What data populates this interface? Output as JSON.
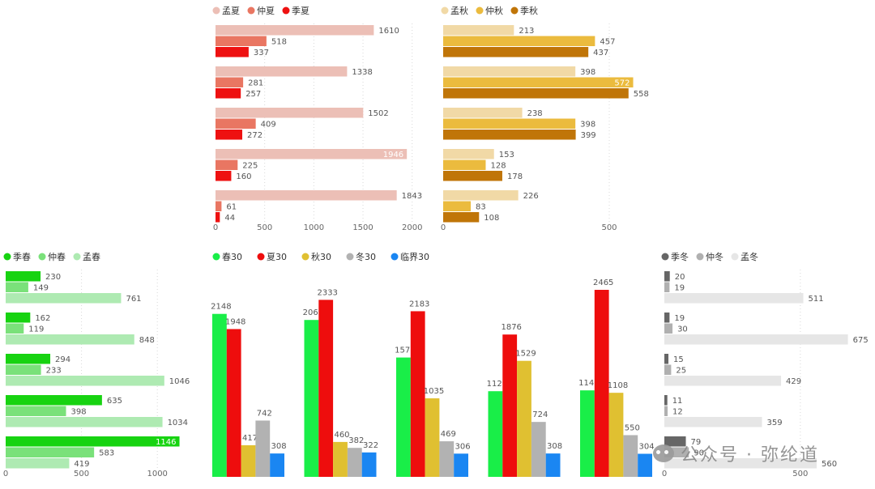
{
  "chart_data": [
    {
      "id": "summer",
      "type": "bar",
      "orientation": "horizontal",
      "title": "",
      "legend_position": "top-left",
      "series": [
        {
          "name": "孟夏",
          "color": "#ecbfb6",
          "values": [
            1610,
            1338,
            1502,
            1946,
            1843
          ]
        },
        {
          "name": "仲夏",
          "color": "#e97662",
          "values": [
            518,
            281,
            409,
            225,
            61
          ]
        },
        {
          "name": "季夏",
          "color": "#ee1111",
          "values": [
            337,
            257,
            272,
            160,
            44
          ]
        }
      ],
      "xlim": [
        0,
        2200
      ],
      "xticks": [
        0,
        500,
        1000,
        1500,
        2000
      ],
      "grid": true
    },
    {
      "id": "autumn",
      "type": "bar",
      "orientation": "horizontal",
      "title": "",
      "legend_position": "top-left",
      "series": [
        {
          "name": "孟秋",
          "color": "#f1d9a6",
          "values": [
            213,
            398,
            238,
            153,
            226
          ]
        },
        {
          "name": "仲秋",
          "color": "#ebbb3e",
          "values": [
            457,
            572,
            398,
            128,
            83
          ]
        },
        {
          "name": "季秋",
          "color": "#c07508",
          "values": [
            437,
            558,
            399,
            178,
            108
          ]
        }
      ],
      "xlim": [
        0,
        600
      ],
      "xticks": [
        0,
        500
      ],
      "grid": true
    },
    {
      "id": "spring",
      "type": "bar",
      "orientation": "horizontal",
      "title": "",
      "legend_position": "top-left",
      "series": [
        {
          "name": "季春",
          "color": "#17d311",
          "values": [
            230,
            162,
            294,
            635,
            1146
          ]
        },
        {
          "name": "仲春",
          "color": "#7ae17a",
          "values": [
            149,
            119,
            233,
            398,
            583
          ]
        },
        {
          "name": "孟春",
          "color": "#aeeab2",
          "values": [
            761,
            848,
            1046,
            1034,
            419
          ]
        }
      ],
      "xlim": [
        0,
        1250
      ],
      "xticks": [
        0,
        500,
        1000
      ],
      "grid": true
    },
    {
      "id": "thirty",
      "type": "bar",
      "orientation": "vertical",
      "title": "",
      "legend_position": "top-left",
      "series": [
        {
          "name": "春30",
          "color": "#19ee48",
          "values": [
            2148,
            2068,
            1573,
            1129,
            1140
          ]
        },
        {
          "name": "夏30",
          "color": "#ee0d0d",
          "values": [
            1948,
            2333,
            2183,
            1876,
            2465
          ]
        },
        {
          "name": "秋30",
          "color": "#e0c031",
          "values": [
            417,
            460,
            1035,
            1529,
            1108
          ]
        },
        {
          "name": "冬30",
          "color": "#b2b2b2",
          "values": [
            742,
            382,
            469,
            724,
            550
          ]
        },
        {
          "name": "临界30",
          "color": "#1a86f2",
          "values": [
            308,
            322,
            306,
            308,
            304
          ]
        }
      ],
      "ylim": [
        0,
        2700
      ],
      "grid": false
    },
    {
      "id": "winter",
      "type": "bar",
      "orientation": "horizontal",
      "title": "",
      "legend_position": "top-left",
      "series": [
        {
          "name": "季冬",
          "color": "#666666",
          "values": [
            20,
            19,
            15,
            11,
            79
          ]
        },
        {
          "name": "仲冬",
          "color": "#b0b0b0",
          "values": [
            19,
            30,
            25,
            12,
            90
          ]
        },
        {
          "name": "孟冬",
          "color": "#e6e6e6",
          "values": [
            511,
            675,
            429,
            359,
            560
          ]
        }
      ],
      "xlim": [
        0,
        700
      ],
      "xticks": [
        0,
        500
      ],
      "grid": true
    }
  ],
  "watermark": {
    "text": "公众号 · 弥纶道"
  }
}
